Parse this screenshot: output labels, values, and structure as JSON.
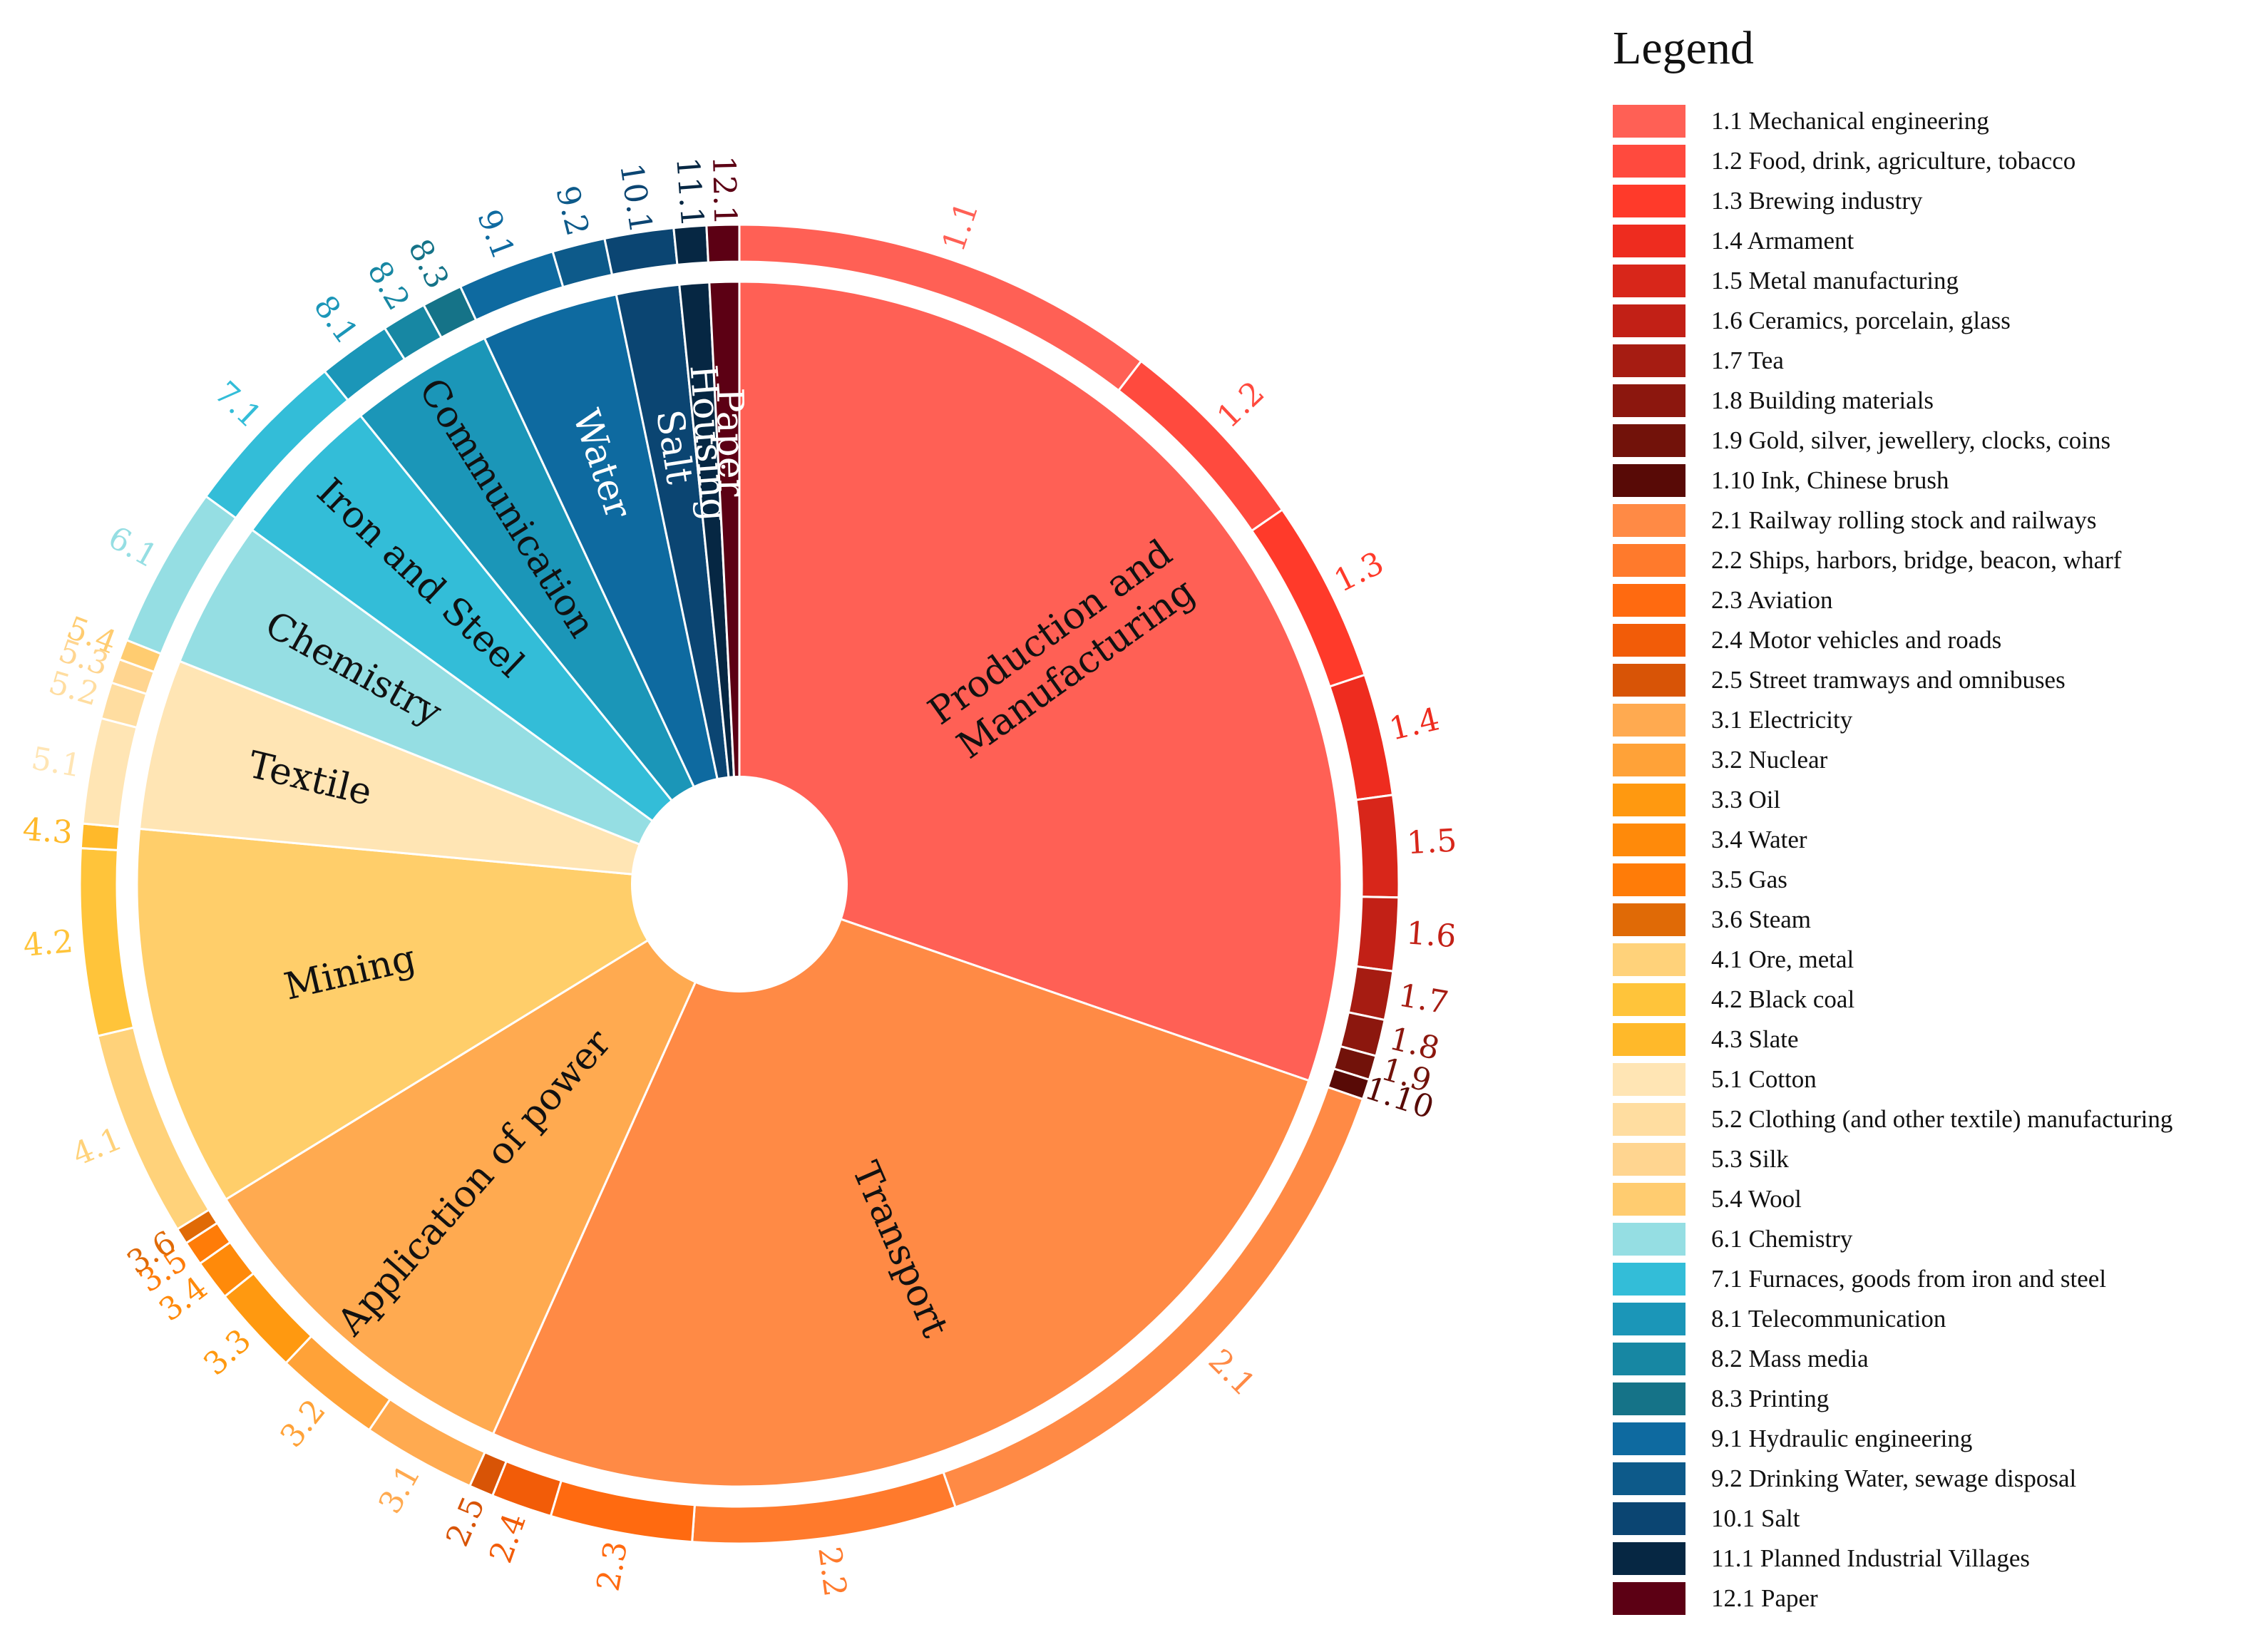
{
  "chart_data": {
    "type": "sunburst",
    "title": "",
    "groups": [
      {
        "name": "Production and\nManufacturing",
        "color": "#FF6055",
        "label_dark": true,
        "items": [
          {
            "code": "1.1",
            "name": "Mechanical engineering",
            "value": 10.5,
            "color": "#FF6055"
          },
          {
            "code": "1.2",
            "name": "Food, drink, agriculture, tobacco",
            "value": 5.0,
            "color": "#FF4A3E"
          },
          {
            "code": "1.3",
            "name": "Brewing industry",
            "value": 4.5,
            "color": "#FF3A2A"
          },
          {
            "code": "1.4",
            "name": "Armament",
            "value": 3.0,
            "color": "#EE2C1F"
          },
          {
            "code": "1.5",
            "name": "Metal manufacturing",
            "value": 2.5,
            "color": "#D8261A"
          },
          {
            "code": "1.6",
            "name": "Ceramics, porcelain, glass",
            "value": 1.8,
            "color": "#C22016"
          },
          {
            "code": "1.7",
            "name": "Tea",
            "value": 1.2,
            "color": "#A61C12"
          },
          {
            "code": "1.8",
            "name": "Building materials",
            "value": 0.9,
            "color": "#8C170E"
          },
          {
            "code": "1.9",
            "name": "Gold, silver, jewellery, clocks, coins",
            "value": 0.6,
            "color": "#72120A"
          },
          {
            "code": "1.10",
            "name": "Ink, Chinese brush",
            "value": 0.5,
            "color": "#580A06"
          }
        ]
      },
      {
        "name": "Transport",
        "color": "#FF8A45",
        "label_dark": true,
        "items": [
          {
            "code": "2.1",
            "name": "Railway rolling stock and railways",
            "value": 14.5,
            "color": "#FF8A45"
          },
          {
            "code": "2.2",
            "name": "Ships, harbors, bridge, beacon, wharf",
            "value": 6.5,
            "color": "#FF7A2C"
          },
          {
            "code": "2.3",
            "name": "Aviation",
            "value": 3.5,
            "color": "#FF6A10"
          },
          {
            "code": "2.4",
            "name": "Motor vehicles and roads",
            "value": 1.5,
            "color": "#F25C08"
          },
          {
            "code": "2.5",
            "name": "Street tramways and omnibuses",
            "value": 0.6,
            "color": "#D85406"
          }
        ]
      },
      {
        "name": "Application of power",
        "color": "#FFAA50",
        "label_dark": true,
        "items": [
          {
            "code": "3.1",
            "name": "Electricity",
            "value": 2.8,
            "color": "#FFAA50"
          },
          {
            "code": "3.2",
            "name": "Nuclear",
            "value": 2.6,
            "color": "#FFA238"
          },
          {
            "code": "3.3",
            "name": "Oil",
            "value": 2.2,
            "color": "#FF9910"
          },
          {
            "code": "3.4",
            "name": "Water",
            "value": 1.0,
            "color": "#FF8A0A"
          },
          {
            "code": "3.5",
            "name": "Gas",
            "value": 0.6,
            "color": "#FF7C08"
          },
          {
            "code": "3.6",
            "name": "Steam",
            "value": 0.4,
            "color": "#E06A06"
          }
        ]
      },
      {
        "name": "Mining",
        "color": "#FFCE6A",
        "label_dark": true,
        "items": [
          {
            "code": "4.1",
            "name": "Ore, metal",
            "value": 5.1,
            "color": "#FFD27A"
          },
          {
            "code": "4.2",
            "name": "Black coal",
            "value": 4.6,
            "color": "#FFC43A"
          },
          {
            "code": "4.3",
            "name": "Slate",
            "value": 0.6,
            "color": "#FFB92A"
          }
        ]
      },
      {
        "name": "Textile",
        "color": "#FFE5B4",
        "label_dark": true,
        "items": [
          {
            "code": "5.1",
            "name": "Cotton",
            "value": 2.6,
            "color": "#FFE5B4"
          },
          {
            "code": "5.2",
            "name": "Clothing (and other textile) manufacturing",
            "value": 0.9,
            "color": "#FFDDA0"
          },
          {
            "code": "5.3",
            "name": "Silk",
            "value": 0.6,
            "color": "#FFD590"
          },
          {
            "code": "5.4",
            "name": "Wool",
            "value": 0.5,
            "color": "#FFCC70"
          }
        ]
      },
      {
        "name": "Chemistry",
        "color": "#95DEE3",
        "label_dark": true,
        "items": [
          {
            "code": "6.1",
            "name": "Chemistry",
            "value": 4.0,
            "color": "#95DEE3"
          }
        ]
      },
      {
        "name": "Iron and Steel",
        "color": "#33BDD8",
        "label_dark": true,
        "items": [
          {
            "code": "7.1",
            "name": "Furnaces, goods from iron and steel",
            "value": 4.2,
            "color": "#33BDD8"
          }
        ]
      },
      {
        "name": "Communication",
        "color": "#1B96B8",
        "label_dark": true,
        "items": [
          {
            "code": "8.1",
            "name": "Telecommunication",
            "value": 1.8,
            "color": "#1B96B8"
          },
          {
            "code": "8.2",
            "name": "Mass media",
            "value": 1.1,
            "color": "#1787A3"
          },
          {
            "code": "8.3",
            "name": "Printing",
            "value": 1.0,
            "color": "#157388"
          }
        ]
      },
      {
        "name": "Water",
        "color": "#0E6AA0",
        "label_dark": false,
        "items": [
          {
            "code": "9.1",
            "name": "Hydraulic engineering",
            "value": 2.4,
            "color": "#0E6AA0"
          },
          {
            "code": "9.2",
            "name": "Drinking Water, sewage disposal",
            "value": 1.3,
            "color": "#0D5A8A"
          }
        ]
      },
      {
        "name": "Salt",
        "color": "#0B4572",
        "label_dark": false,
        "items": [
          {
            "code": "10.1",
            "name": "Salt",
            "value": 1.7,
            "color": "#0B4572"
          }
        ]
      },
      {
        "name": "Housing",
        "color": "#062743",
        "label_dark": false,
        "items": [
          {
            "code": "11.1",
            "name": "Planned Industrial Villages",
            "value": 0.8,
            "color": "#062743"
          }
        ]
      },
      {
        "name": "Paper",
        "color": "#5C0014",
        "label_dark": false,
        "items": [
          {
            "code": "12.1",
            "name": "Paper",
            "value": 0.8,
            "color": "#5C0014"
          }
        ]
      }
    ]
  },
  "legend": {
    "title": "Legend",
    "items": [
      {
        "label": "1.1 Mechanical engineering",
        "color": "#FF6055"
      },
      {
        "label": "1.2 Food, drink, agriculture, tobacco",
        "color": "#FF4A3E"
      },
      {
        "label": "1.3 Brewing industry",
        "color": "#FF3A2A"
      },
      {
        "label": "1.4 Armament",
        "color": "#EE2C1F"
      },
      {
        "label": "1.5 Metal manufacturing",
        "color": "#D8261A"
      },
      {
        "label": "1.6 Ceramics, porcelain, glass",
        "color": "#C22016"
      },
      {
        "label": "1.7 Tea",
        "color": "#A61C12"
      },
      {
        "label": "1.8 Building materials",
        "color": "#8C170E"
      },
      {
        "label": "1.9 Gold, silver, jewellery, clocks, coins",
        "color": "#72120A"
      },
      {
        "label": "1.10 Ink, Chinese brush",
        "color": "#580A06"
      },
      {
        "label": "2.1 Railway rolling stock and railways",
        "color": "#FF8A45"
      },
      {
        "label": "2.2 Ships, harbors, bridge, beacon, wharf",
        "color": "#FF7A2C"
      },
      {
        "label": "2.3 Aviation",
        "color": "#FF6A10"
      },
      {
        "label": "2.4 Motor vehicles and roads",
        "color": "#F25C08"
      },
      {
        "label": "2.5 Street tramways and omnibuses",
        "color": "#D85406"
      },
      {
        "label": "3.1 Electricity",
        "color": "#FFAA50"
      },
      {
        "label": "3.2 Nuclear",
        "color": "#FFA238"
      },
      {
        "label": "3.3 Oil",
        "color": "#FF9910"
      },
      {
        "label": "3.4 Water",
        "color": "#FF8A0A"
      },
      {
        "label": "3.5 Gas",
        "color": "#FF7C08"
      },
      {
        "label": "3.6 Steam",
        "color": "#E06A06"
      },
      {
        "label": "4.1 Ore, metal",
        "color": "#FFD27A"
      },
      {
        "label": "4.2 Black coal",
        "color": "#FFC43A"
      },
      {
        "label": "4.3 Slate",
        "color": "#FFB92A"
      },
      {
        "label": "5.1 Cotton",
        "color": "#FFE5B4"
      },
      {
        "label": "5.2 Clothing (and other textile) manufacturing",
        "color": "#FFDDA0"
      },
      {
        "label": "5.3 Silk",
        "color": "#FFD590"
      },
      {
        "label": "5.4 Wool",
        "color": "#FFCC70"
      },
      {
        "label": "6.1 Chemistry",
        "color": "#95DEE3"
      },
      {
        "label": "7.1 Furnaces, goods from iron and steel",
        "color": "#33BDD8"
      },
      {
        "label": "8.1 Telecommunication",
        "color": "#1B96B8"
      },
      {
        "label": "8.2 Mass media",
        "color": "#1787A3"
      },
      {
        "label": "8.3 Printing",
        "color": "#157388"
      },
      {
        "label": "9.1 Hydraulic engineering",
        "color": "#0E6AA0"
      },
      {
        "label": "9.2 Drinking Water, sewage disposal",
        "color": "#0D5A8A"
      },
      {
        "label": "10.1 Salt",
        "color": "#0B4572"
      },
      {
        "label": "11.1 Planned Industrial Villages",
        "color": "#062743"
      },
      {
        "label": "12.1 Paper",
        "color": "#5C0014"
      }
    ]
  }
}
